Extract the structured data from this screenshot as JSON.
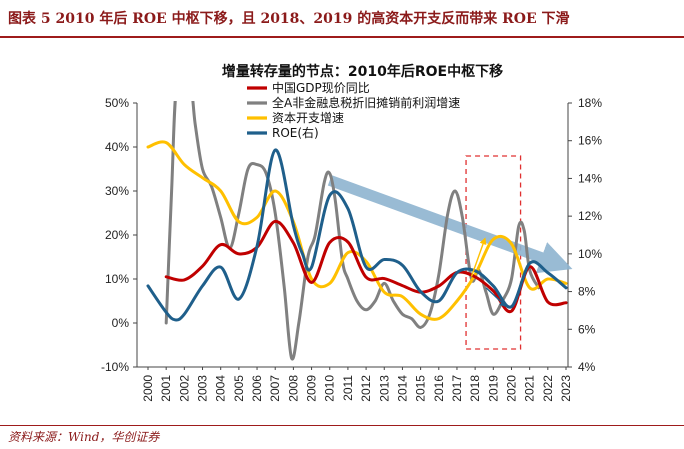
{
  "figure_title": "图表 5   2010 年后 ROE 中枢下移，且 2018、2019 的高资本开支反而带来 ROE 下滑",
  "source": "资料来源：Wind，华创证券",
  "colors": {
    "brand_red": "#9e1b1b",
    "gdp": "#c00000",
    "profit": "#808080",
    "capex": "#ffc000",
    "roe": "#1f5f8b",
    "trend_arrow": "#8fb4d0",
    "highlight_box": "#e03030"
  },
  "chart_data": {
    "type": "line",
    "title": "增量转存量的节点：2010年后ROE中枢下移",
    "x": [
      "2000",
      "2001",
      "2002",
      "2003",
      "2004",
      "2005",
      "2006",
      "2007",
      "2008",
      "2009",
      "2010",
      "2011",
      "2012",
      "2013",
      "2014",
      "2015",
      "2016",
      "2017",
      "2018",
      "2019",
      "2020",
      "2021",
      "2022",
      "2023"
    ],
    "x_values": [
      2000,
      2001,
      2002,
      2003,
      2004,
      2005,
      2006,
      2007,
      2008,
      2009,
      2010,
      2011,
      2012,
      2013,
      2014,
      2015,
      2016,
      2017,
      2018,
      2019,
      2020,
      2021,
      2022,
      2023
    ],
    "y_left": {
      "min": -10,
      "max": 50,
      "step": 10,
      "ticks": [
        "-10%",
        "0%",
        "10%",
        "20%",
        "30%",
        "40%",
        "50%"
      ]
    },
    "y_right": {
      "min": 4,
      "max": 18,
      "step": 2,
      "ticks": [
        "4%",
        "6%",
        "8%",
        "10%",
        "12%",
        "14%",
        "16%",
        "18%"
      ]
    },
    "series": [
      {
        "name": "中国GDP现价同比",
        "axis": "left",
        "color": "#c00000",
        "points": [
          [
            2001,
            10.5
          ],
          [
            2002,
            9.8
          ],
          [
            2003,
            12.9
          ],
          [
            2004,
            17.8
          ],
          [
            2005,
            15.7
          ],
          [
            2006,
            17.2
          ],
          [
            2007,
            23.1
          ],
          [
            2008,
            18.2
          ],
          [
            2009,
            9.2
          ],
          [
            2010,
            18.3
          ],
          [
            2011,
            18.4
          ],
          [
            2012,
            10.4
          ],
          [
            2013,
            10.1
          ],
          [
            2014,
            8.5
          ],
          [
            2015,
            7.0
          ],
          [
            2016,
            8.4
          ],
          [
            2017,
            11.5
          ],
          [
            2018,
            10.5
          ],
          [
            2019,
            7.3
          ],
          [
            2020,
            2.7
          ],
          [
            2021,
            12.8
          ],
          [
            2022,
            4.8
          ],
          [
            2023,
            4.6
          ]
        ]
      },
      {
        "name": "全A非金融息税折旧摊销前利润增速",
        "axis": "left",
        "color": "#808080",
        "points": [
          [
            2001,
            0
          ],
          [
            2001.3,
            30
          ],
          [
            2001.6,
            55
          ],
          [
            2002.3,
            55
          ],
          [
            2002.6,
            45
          ],
          [
            2003,
            35
          ],
          [
            2003.5,
            31
          ],
          [
            2004,
            24
          ],
          [
            2004.5,
            17
          ],
          [
            2005,
            25
          ],
          [
            2005.5,
            35
          ],
          [
            2006,
            36
          ],
          [
            2006.5,
            34
          ],
          [
            2007,
            25
          ],
          [
            2007.5,
            8
          ],
          [
            2007.9,
            -8
          ],
          [
            2008.3,
            0
          ],
          [
            2008.8,
            15
          ],
          [
            2009.2,
            20
          ],
          [
            2009.7,
            32
          ],
          [
            2010,
            34
          ],
          [
            2010.3,
            28
          ],
          [
            2010.7,
            14
          ],
          [
            2011,
            10
          ],
          [
            2011.5,
            5
          ],
          [
            2012,
            3
          ],
          [
            2012.5,
            5
          ],
          [
            2013,
            9
          ],
          [
            2013.5,
            5
          ],
          [
            2014,
            2
          ],
          [
            2014.5,
            1
          ],
          [
            2015,
            -1
          ],
          [
            2015.5,
            2
          ],
          [
            2016,
            11
          ],
          [
            2016.5,
            25
          ],
          [
            2016.9,
            30
          ],
          [
            2017.3,
            24
          ],
          [
            2017.8,
            10
          ],
          [
            2018.2,
            12
          ],
          [
            2018.6,
            7
          ],
          [
            2019,
            2
          ],
          [
            2019.5,
            5
          ],
          [
            2020,
            10
          ],
          [
            2020.4,
            22
          ],
          [
            2020.7,
            21
          ],
          [
            2021,
            12
          ],
          [
            2021.5,
            8
          ]
        ]
      },
      {
        "name": "资本开支增速",
        "axis": "left",
        "color": "#ffc000",
        "points": [
          [
            2000,
            40
          ],
          [
            2001,
            41
          ],
          [
            2002,
            36
          ],
          [
            2003,
            33
          ],
          [
            2004,
            30
          ],
          [
            2005,
            23
          ],
          [
            2006,
            24
          ],
          [
            2007,
            30
          ],
          [
            2008,
            23
          ],
          [
            2009,
            10
          ],
          [
            2010,
            9
          ],
          [
            2011,
            16
          ],
          [
            2012,
            14
          ],
          [
            2013,
            7
          ],
          [
            2014,
            6
          ],
          [
            2015,
            2
          ],
          [
            2016,
            1
          ],
          [
            2017,
            5
          ],
          [
            2018,
            11
          ],
          [
            2019,
            19
          ],
          [
            2020,
            18
          ],
          [
            2021,
            8
          ],
          [
            2022,
            10
          ],
          [
            2023,
            9
          ]
        ]
      },
      {
        "name": "ROE(右)",
        "axis": "right",
        "color": "#1f5f8b",
        "points": [
          [
            2000,
            8.3
          ],
          [
            2001,
            6.9
          ],
          [
            2001.5,
            6.5
          ],
          [
            2002,
            6.8
          ],
          [
            2003,
            8.3
          ],
          [
            2004,
            9.3
          ],
          [
            2005,
            7.6
          ],
          [
            2006,
            10.4
          ],
          [
            2007,
            15.5
          ],
          [
            2008,
            11.5
          ],
          [
            2008.5,
            10.0
          ],
          [
            2009,
            9.3
          ],
          [
            2010,
            13.1
          ],
          [
            2011,
            12.4
          ],
          [
            2012,
            9.3
          ],
          [
            2013,
            9.7
          ],
          [
            2014,
            9.4
          ],
          [
            2015,
            8.0
          ],
          [
            2016,
            7.5
          ],
          [
            2017,
            9.0
          ],
          [
            2018,
            9.1
          ],
          [
            2019,
            8.3
          ],
          [
            2020,
            7.2
          ],
          [
            2021,
            9.5
          ],
          [
            2022,
            9.0
          ],
          [
            2023,
            8.2
          ]
        ]
      }
    ],
    "annotations": {
      "trend_arrow": {
        "from": [
          2010,
          13.9
        ],
        "to": [
          2022.5,
          9.5
        ],
        "axis": "right"
      },
      "highlight_range": {
        "x": [
          2017.5,
          2020.5
        ]
      },
      "up_arrows": [
        {
          "from": [
            2017.8,
            8.8
          ],
          "to": [
            2018.5,
            10.7
          ],
          "axis": "right",
          "color": "#ffc000"
        }
      ],
      "down_arrows": [
        {
          "from": [
            2018.6,
            8.2
          ],
          "to": [
            2019.6,
            7.3
          ],
          "axis": "right",
          "color": "#1f5f8b"
        }
      ]
    },
    "grid": false,
    "legend_position": "top-center"
  }
}
